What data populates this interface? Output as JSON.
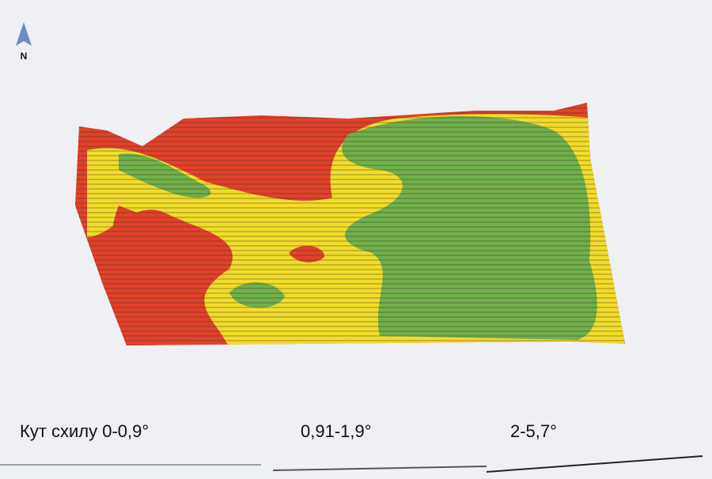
{
  "north_label": "N",
  "legend": {
    "items": [
      {
        "label": "Кут схилу 0-0,9°"
      },
      {
        "label": "0,91-1,9°"
      },
      {
        "label": "2-5,7°"
      }
    ]
  }
}
